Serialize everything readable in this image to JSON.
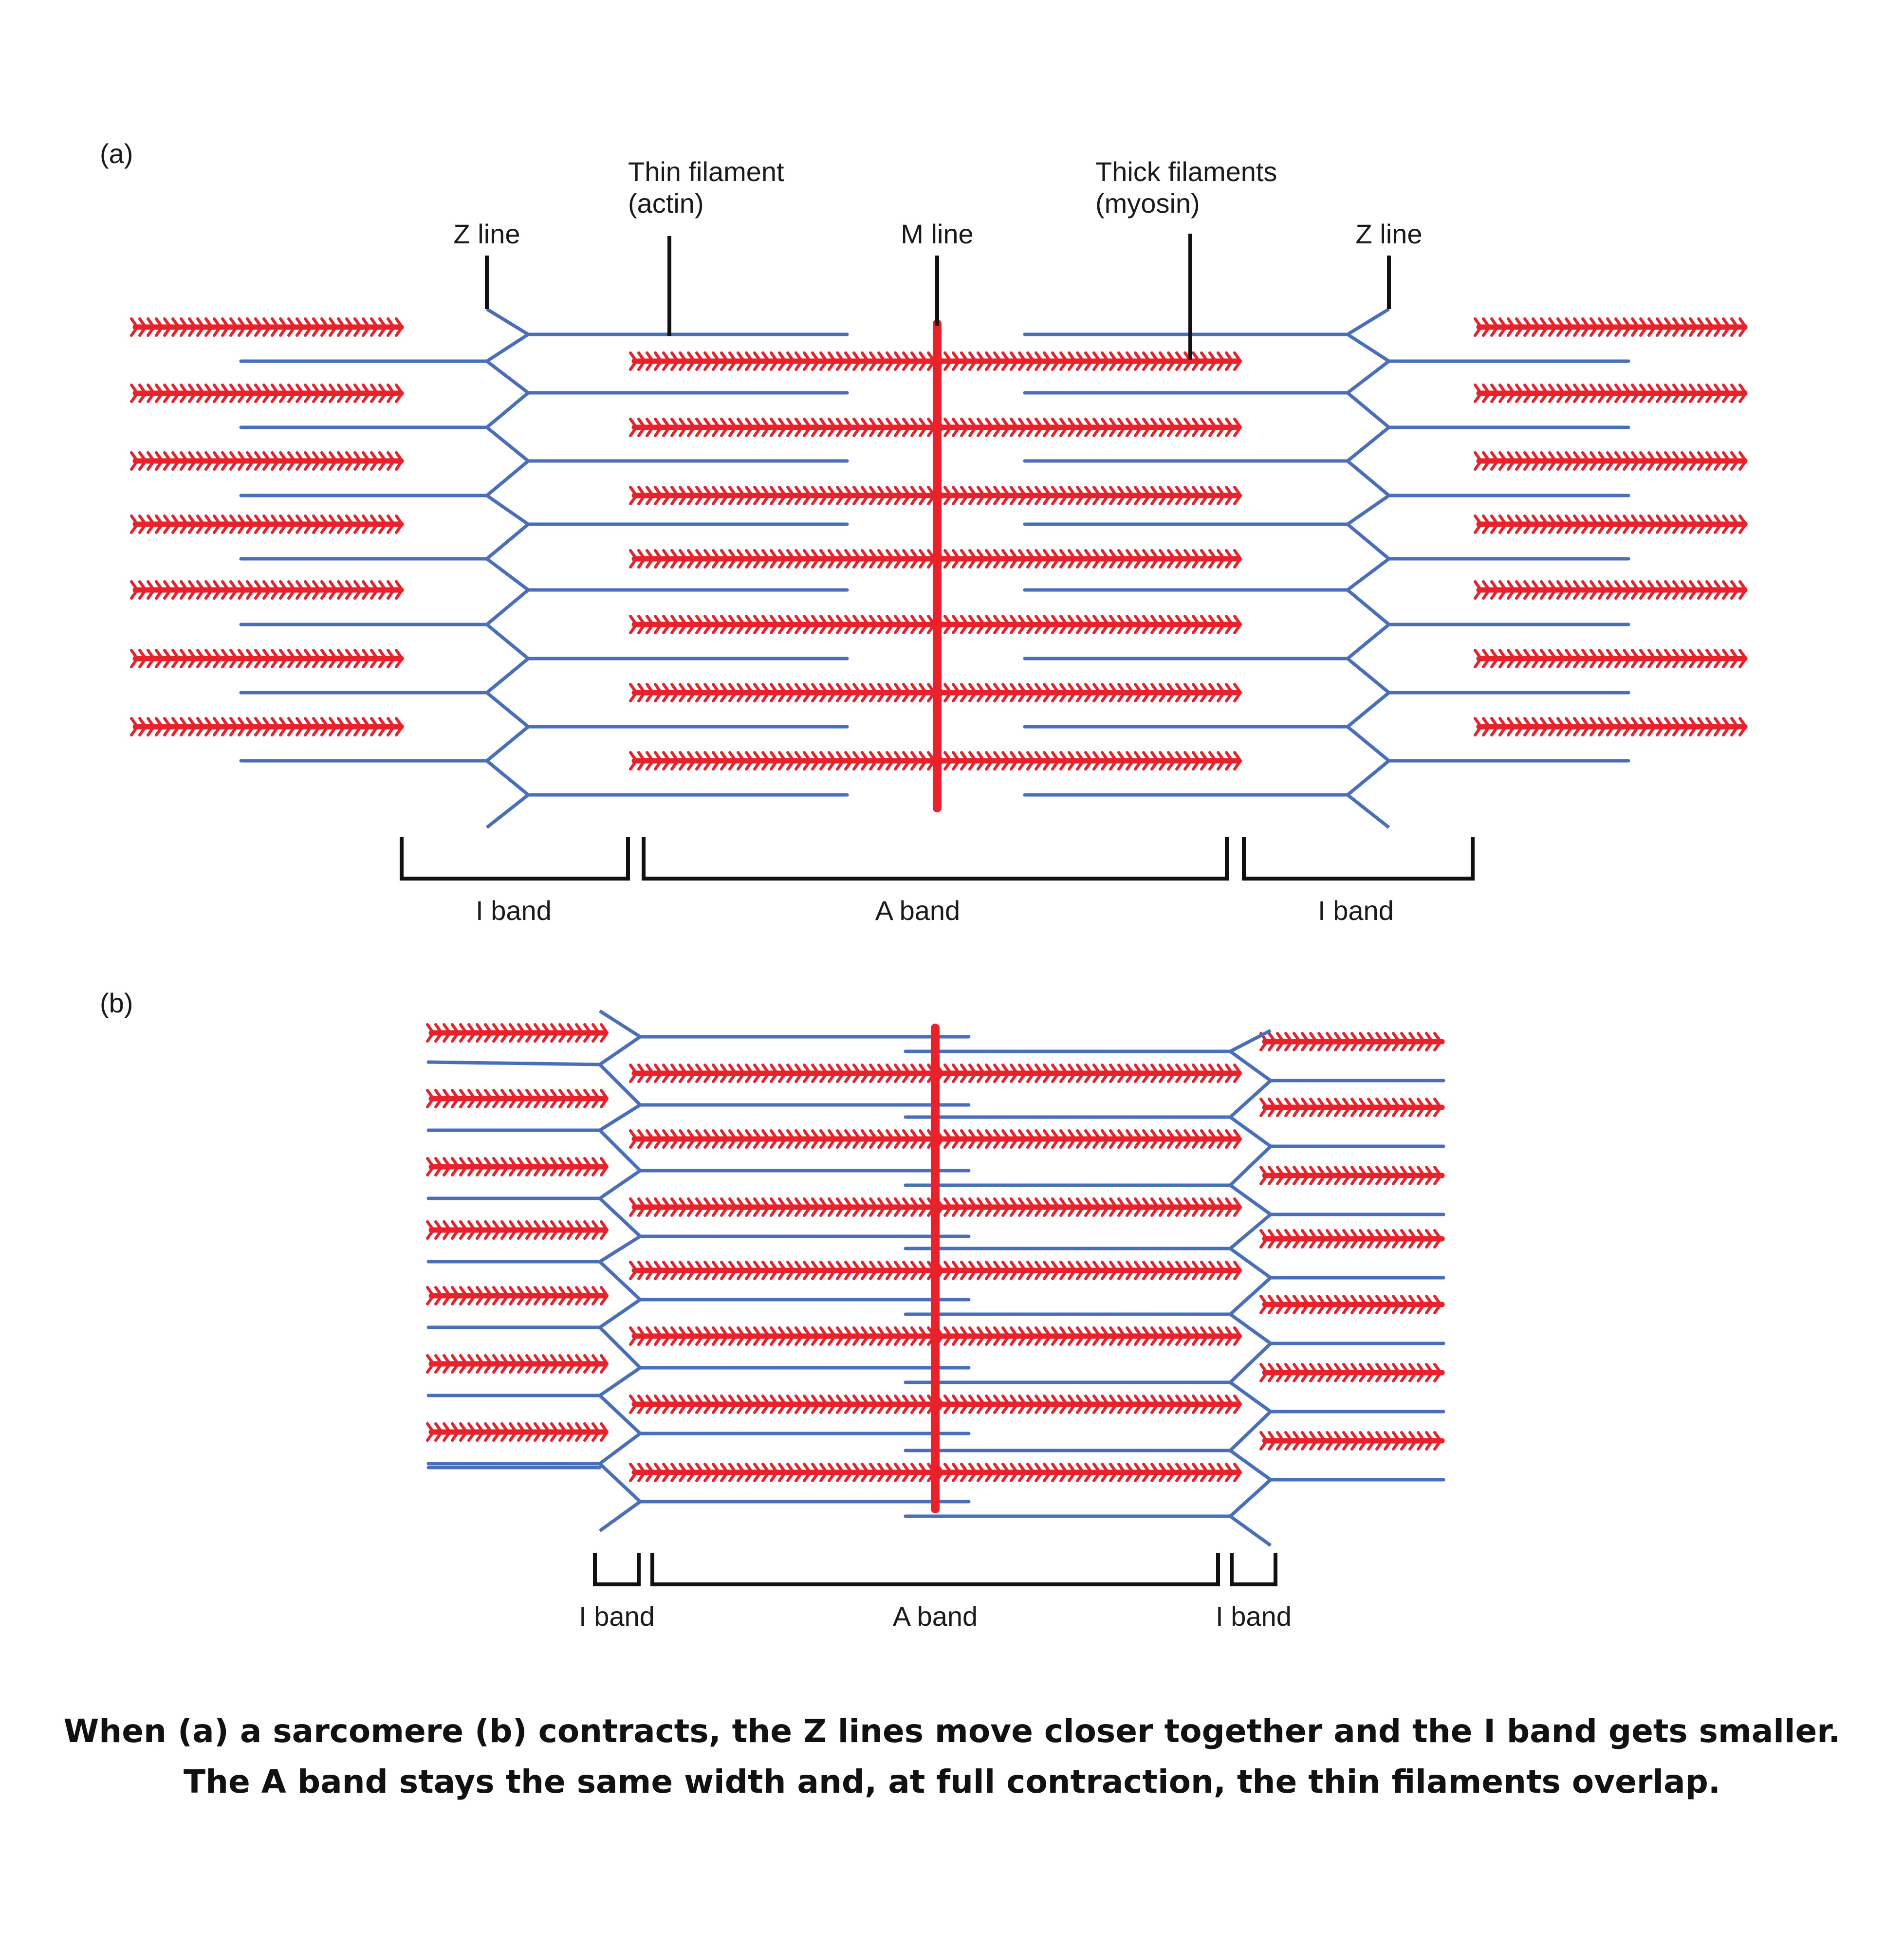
{
  "colors": {
    "thin": "#4a6fba",
    "thick": "#e8212a",
    "line": "#111111"
  },
  "panel_a": {
    "tag": "(a)",
    "thin_filament_label": [
      "Thin filament",
      "(actin)"
    ],
    "thick_filament_label": [
      "Thick filaments",
      "(myosin)"
    ],
    "z_line_left": "Z line",
    "m_line": "M line",
    "z_line_right": "Z line",
    "band_left": "I band",
    "band_middle": "A band",
    "band_right": "I band"
  },
  "panel_b": {
    "tag": "(b)",
    "band_left": "I band",
    "band_middle": "A band",
    "band_right": "I band"
  },
  "caption": {
    "line1": "When (a) a sarcomere (b) contracts, the Z lines move closer together and the I band gets smaller.",
    "line2": "The A band stays the same width and, at full contraction, the thin filaments overlap."
  }
}
